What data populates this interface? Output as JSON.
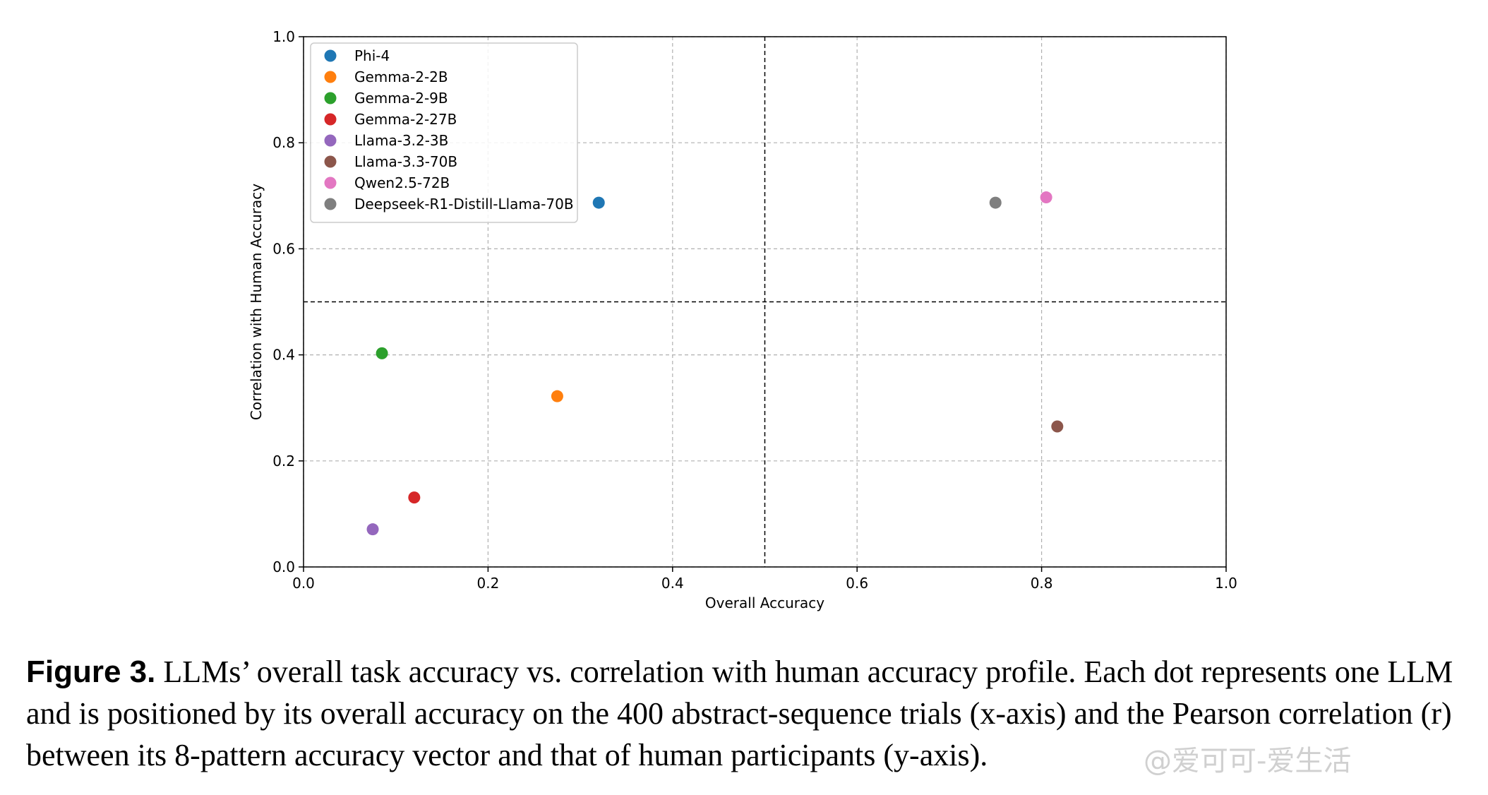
{
  "chart_data": {
    "type": "scatter",
    "xlabel": "Overall Accuracy",
    "ylabel": "Correlation with Human Accuracy",
    "xlim": [
      0.0,
      1.0
    ],
    "ylim": [
      0.0,
      1.0
    ],
    "xticks": [
      "0.0",
      "0.2",
      "0.4",
      "0.6",
      "0.8",
      "1.0"
    ],
    "yticks": [
      "0.0",
      "0.2",
      "0.4",
      "0.6",
      "0.8",
      "1.0"
    ],
    "grid": true,
    "reference_lines": {
      "x": 0.5,
      "y": 0.5,
      "style": "dashed"
    },
    "legend_placement": "top-left",
    "series": [
      {
        "name": "Phi-4",
        "color": "#1f77b4",
        "x": 0.32,
        "y": 0.687
      },
      {
        "name": "Gemma-2-2B",
        "color": "#ff7f0e",
        "x": 0.275,
        "y": 0.322
      },
      {
        "name": "Gemma-2-9B",
        "color": "#2ca02c",
        "x": 0.085,
        "y": 0.403
      },
      {
        "name": "Gemma-2-27B",
        "color": "#d62728",
        "x": 0.12,
        "y": 0.131
      },
      {
        "name": "Llama-3.2-3B",
        "color": "#9467bd",
        "x": 0.075,
        "y": 0.071
      },
      {
        "name": "Llama-3.3-70B",
        "color": "#8c564b",
        "x": 0.817,
        "y": 0.265
      },
      {
        "name": "Qwen2.5-72B",
        "color": "#e377c2",
        "x": 0.805,
        "y": 0.697
      },
      {
        "name": "Deepseek-R1-Distill-Llama-70B",
        "color": "#7f7f7f",
        "x": 0.75,
        "y": 0.687
      }
    ]
  },
  "caption": {
    "label": "Figure 3.",
    "text": " LLMs’ overall task accuracy vs. correlation with human accuracy profile. Each dot represents one LLM and is positioned by its overall accuracy on the 400 abstract-sequence trials (x-axis) and the Pearson correlation (r) between its 8-pattern accuracy vector and that of human participants (y-axis)."
  },
  "watermark": "@爱可可-爱生活"
}
